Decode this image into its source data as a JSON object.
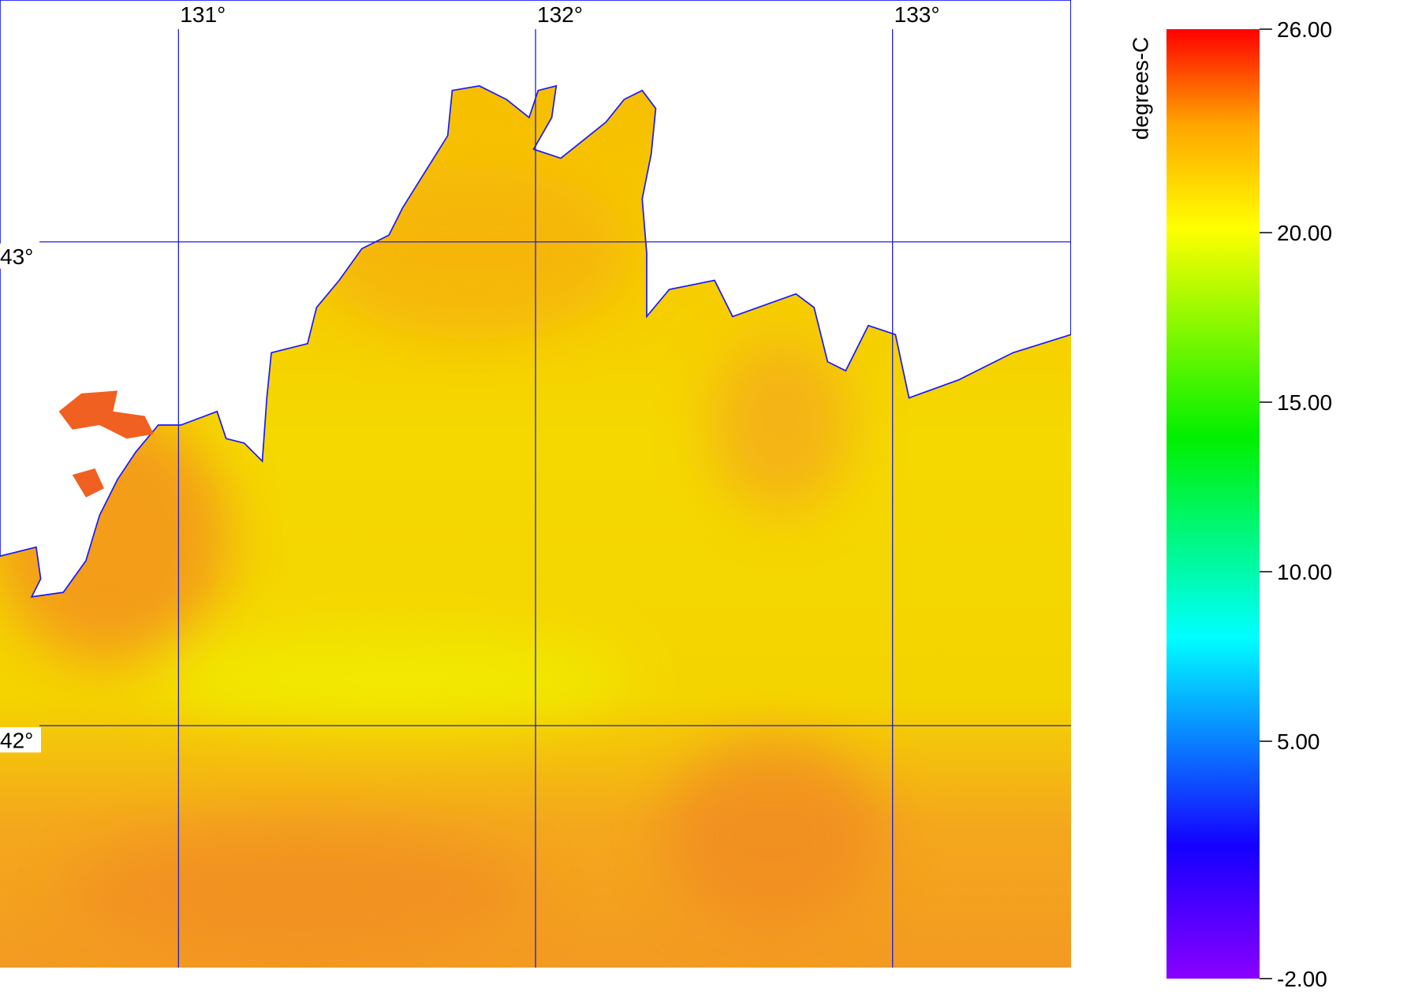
{
  "map": {
    "xlim": [
      130.5,
      133.5
    ],
    "ylim": [
      41.5,
      43.5
    ],
    "xticks": [
      {
        "value": 131,
        "label": "131°"
      },
      {
        "value": 132,
        "label": "132°"
      },
      {
        "value": 133,
        "label": "133°"
      }
    ],
    "yticks": [
      {
        "value": 43,
        "label": "43°"
      },
      {
        "value": 42,
        "label": "42°"
      }
    ],
    "colorbar": {
      "label": "degrees-C",
      "range": [
        -2,
        26
      ],
      "ticks": [
        {
          "value": 26,
          "label": "26.00"
        },
        {
          "value": 20,
          "label": "20.00"
        },
        {
          "value": 15,
          "label": "15.00"
        },
        {
          "value": 10,
          "label": "10.00"
        },
        {
          "value": 5,
          "label": "5.00"
        },
        {
          "value": -2,
          "label": "-2.00"
        }
      ]
    }
  }
}
